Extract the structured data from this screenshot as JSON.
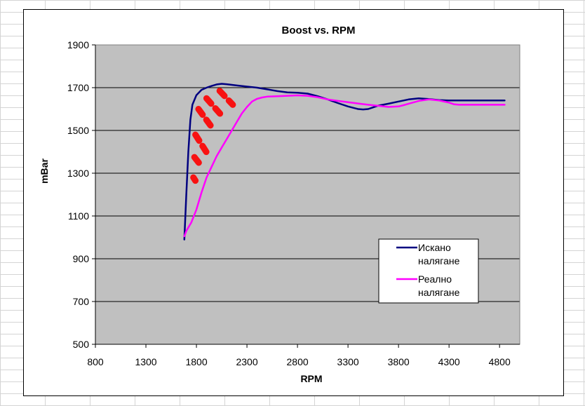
{
  "chart_data": {
    "type": "line",
    "title": "Boost vs. RPM",
    "xlabel": "RPM",
    "ylabel": "mBar",
    "xlim": [
      800,
      5000
    ],
    "ylim": [
      500,
      1900
    ],
    "x_ticks": [
      800,
      1300,
      1800,
      2300,
      2800,
      3300,
      3800,
      4300,
      4800
    ],
    "y_ticks": [
      500,
      700,
      900,
      1100,
      1300,
      1500,
      1700,
      1900
    ],
    "grid": "horizontal",
    "legend": "bottom-right",
    "plot_background": "#c0c0c0",
    "series": [
      {
        "name": "Искано налягане",
        "color": "#000080",
        "points": [
          [
            1680,
            990
          ],
          [
            1700,
            1200
          ],
          [
            1720,
            1400
          ],
          [
            1740,
            1550
          ],
          [
            1760,
            1620
          ],
          [
            1800,
            1665
          ],
          [
            1850,
            1690
          ],
          [
            1900,
            1700
          ],
          [
            1950,
            1708
          ],
          [
            2000,
            1715
          ],
          [
            2050,
            1718
          ],
          [
            2100,
            1716
          ],
          [
            2200,
            1710
          ],
          [
            2300,
            1705
          ],
          [
            2400,
            1700
          ],
          [
            2500,
            1692
          ],
          [
            2600,
            1684
          ],
          [
            2700,
            1678
          ],
          [
            2800,
            1676
          ],
          [
            2900,
            1672
          ],
          [
            3000,
            1660
          ],
          [
            3100,
            1645
          ],
          [
            3200,
            1628
          ],
          [
            3300,
            1612
          ],
          [
            3400,
            1600
          ],
          [
            3450,
            1598
          ],
          [
            3500,
            1600
          ],
          [
            3550,
            1608
          ],
          [
            3600,
            1616
          ],
          [
            3700,
            1625
          ],
          [
            3800,
            1635
          ],
          [
            3900,
            1645
          ],
          [
            4000,
            1650
          ],
          [
            4100,
            1647
          ],
          [
            4200,
            1642
          ],
          [
            4300,
            1640
          ],
          [
            4400,
            1640
          ],
          [
            4500,
            1640
          ],
          [
            4600,
            1640
          ],
          [
            4700,
            1640
          ],
          [
            4850,
            1640
          ]
        ]
      },
      {
        "name": "Реално налягане",
        "color": "#ff00ff",
        "points": [
          [
            1680,
            1005
          ],
          [
            1700,
            1030
          ],
          [
            1750,
            1070
          ],
          [
            1800,
            1130
          ],
          [
            1850,
            1210
          ],
          [
            1900,
            1280
          ],
          [
            1950,
            1330
          ],
          [
            2000,
            1380
          ],
          [
            2050,
            1420
          ],
          [
            2100,
            1460
          ],
          [
            2150,
            1500
          ],
          [
            2200,
            1540
          ],
          [
            2250,
            1580
          ],
          [
            2300,
            1610
          ],
          [
            2350,
            1635
          ],
          [
            2400,
            1648
          ],
          [
            2450,
            1654
          ],
          [
            2500,
            1658
          ],
          [
            2600,
            1660
          ],
          [
            2700,
            1662
          ],
          [
            2800,
            1664
          ],
          [
            2900,
            1662
          ],
          [
            3000,
            1655
          ],
          [
            3100,
            1645
          ],
          [
            3200,
            1638
          ],
          [
            3300,
            1632
          ],
          [
            3400,
            1626
          ],
          [
            3500,
            1620
          ],
          [
            3600,
            1615
          ],
          [
            3700,
            1610
          ],
          [
            3800,
            1612
          ],
          [
            3850,
            1618
          ],
          [
            3900,
            1625
          ],
          [
            4000,
            1638
          ],
          [
            4100,
            1645
          ],
          [
            4200,
            1640
          ],
          [
            4300,
            1630
          ],
          [
            4350,
            1622
          ],
          [
            4400,
            1620
          ],
          [
            4500,
            1620
          ],
          [
            4700,
            1620
          ],
          [
            4850,
            1620
          ]
        ]
      }
    ],
    "annotation_marks": [
      {
        "x1": 1770,
        "y1": 1280,
        "x2": 1790,
        "y2": 1265
      },
      {
        "x1": 1780,
        "y1": 1375,
        "x2": 1830,
        "y2": 1345
      },
      {
        "x1": 1790,
        "y1": 1480,
        "x2": 1910,
        "y2": 1390
      },
      {
        "x1": 1820,
        "y1": 1600,
        "x2": 1960,
        "y2": 1510
      },
      {
        "x1": 1900,
        "y1": 1650,
        "x2": 2040,
        "y2": 1575
      },
      {
        "x1": 2030,
        "y1": 1685,
        "x2": 2160,
        "y2": 1620
      }
    ]
  }
}
